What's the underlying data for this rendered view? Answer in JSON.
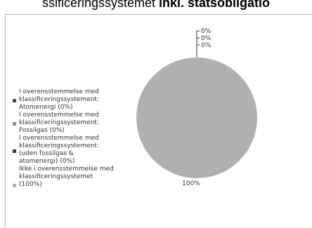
{
  "title": {
    "prefix": "ssificeringssystemet",
    "bold": " inkl. statsobligatio"
  },
  "chart_data": {
    "type": "pie",
    "slices": [
      {
        "label": "I overensstemmelse med klassificeringssystement: Atomenergi (0%)",
        "value": 0,
        "percent_label": "0%",
        "color": "#2e5e2e"
      },
      {
        "label": "I overensstemmelse med klassificeringssystement: Fossilgas (0%)",
        "value": 0,
        "percent_label": "0%",
        "color": "#6fa06f"
      },
      {
        "label": "I overensstemmelse med klassificeringssystement: (uden fossilgas & atomenergi) (0%)",
        "value": 0,
        "percent_label": "0%",
        "color": "#1f4a1f"
      },
      {
        "label": "Ikke i overensstemmelse med klassificeringssystemet (100%)",
        "value": 100,
        "percent_label": "100%",
        "color": "#b0b0b0"
      }
    ],
    "legend_position": "left"
  }
}
